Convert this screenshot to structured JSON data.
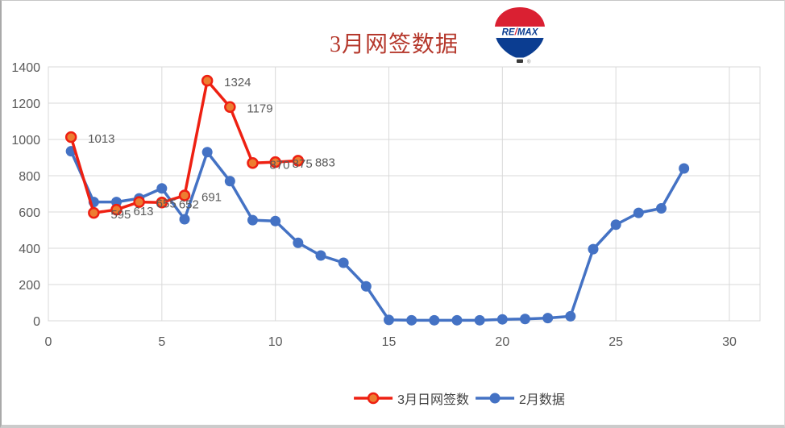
{
  "logo": {
    "name": "remax-balloon",
    "re": "RE",
    "slash": "/",
    "max": "MAX",
    "registered": "®",
    "red": "#da2032",
    "blue": "#0b3d91"
  },
  "frame": {
    "background": "#ffffff",
    "grid_color": "#d9d9d9",
    "text_color": "#595959"
  },
  "chart_data": {
    "type": "line",
    "title": "3月网签数据",
    "title_color": "#b5382c",
    "xlabel": "",
    "ylabel": "",
    "grid": true,
    "legend_position": "bottom",
    "x_axis": {
      "min": 0,
      "max": 30,
      "tick_step": 5,
      "ticks": [
        0,
        5,
        10,
        15,
        20,
        25,
        30
      ]
    },
    "y_axis": {
      "min": 0,
      "max": 1400,
      "tick_step": 200,
      "ticks": [
        0,
        200,
        400,
        600,
        800,
        1000,
        1200,
        1400
      ]
    },
    "series": [
      {
        "name": "2月数据",
        "color": "#4472c4",
        "marker_fill": "#4472c4",
        "marker_stroke": "none",
        "x": [
          1,
          2,
          3,
          4,
          5,
          6,
          7,
          8,
          9,
          10,
          11,
          12,
          13,
          14,
          15,
          16,
          17,
          18,
          19,
          20,
          21,
          22,
          23,
          24,
          25,
          26,
          27,
          28
        ],
        "values": [
          935,
          655,
          655,
          675,
          730,
          560,
          930,
          770,
          555,
          550,
          430,
          360,
          320,
          190,
          5,
          3,
          3,
          3,
          3,
          8,
          10,
          15,
          25,
          395,
          530,
          595,
          620,
          840
        ],
        "data_labels": []
      },
      {
        "name": "3月日网签数",
        "color": "#ee2012",
        "marker_fill": "#ed7d31",
        "marker_stroke": "#ee2012",
        "x": [
          1,
          2,
          3,
          4,
          5,
          6,
          7,
          8,
          9,
          10,
          11
        ],
        "values": [
          1013,
          595,
          613,
          655,
          652,
          691,
          1324,
          1179,
          870,
          875,
          883
        ],
        "data_labels": [
          "1013",
          "595",
          "613",
          "655",
          "652",
          "691",
          "1324",
          "1179",
          "870",
          "875",
          "883"
        ]
      }
    ]
  }
}
